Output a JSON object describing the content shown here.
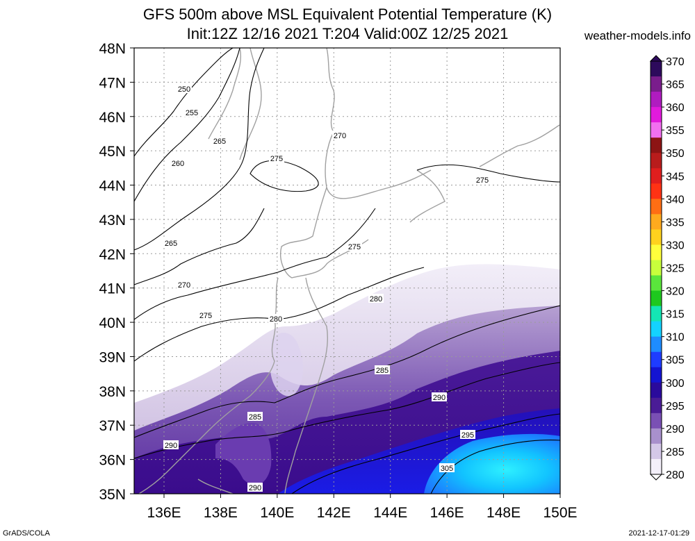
{
  "title_line1": "GFS 500m above MSL Equivalent Potential Temperature (K)",
  "title_line2": "Init:12Z 12/16 2021 T:204 Valid:00Z 12/25 2021",
  "site": "weather-models.info",
  "footer_left": "GrADS/COLA",
  "footer_right": "2021-12-17-01:29",
  "map": {
    "region": "Northern Japan / Hokkaido / Tohoku",
    "lat_labels": [
      "48N",
      "47N",
      "46N",
      "45N",
      "44N",
      "43N",
      "42N",
      "41N",
      "40N",
      "39N",
      "38N",
      "37N",
      "36N",
      "35N"
    ],
    "lon_labels": [
      "136E",
      "138E",
      "140E",
      "142E",
      "144E",
      "146E",
      "148E",
      "150E"
    ],
    "contour_labels": [
      {
        "text": "250"
      },
      {
        "text": "255"
      },
      {
        "text": "265"
      },
      {
        "text": "260"
      },
      {
        "text": "270"
      },
      {
        "text": "275"
      },
      {
        "text": "275"
      },
      {
        "text": "265"
      },
      {
        "text": "275"
      },
      {
        "text": "270"
      },
      {
        "text": "275"
      },
      {
        "text": "280"
      },
      {
        "text": "280"
      },
      {
        "text": "285"
      },
      {
        "text": "290"
      },
      {
        "text": "285"
      },
      {
        "text": "290"
      },
      {
        "text": "295"
      },
      {
        "text": "305"
      },
      {
        "text": "290"
      }
    ]
  },
  "colorbar": {
    "unit": "K",
    "labels": [
      "370",
      "365",
      "360",
      "355",
      "350",
      "345",
      "340",
      "335",
      "330",
      "325",
      "320",
      "315",
      "310",
      "305",
      "300",
      "295",
      "290",
      "285",
      "280"
    ],
    "colors": [
      "#2d0a5c",
      "#7a1d8c",
      "#b01cc0",
      "#e21adc",
      "#f270f0",
      "#8c1414",
      "#b81c1c",
      "#e01e1e",
      "#ff3214",
      "#ff6e14",
      "#ffaa1e",
      "#ffd21e",
      "#ffff3c",
      "#c8ff3c",
      "#5ae63c",
      "#1ec81e",
      "#14e6b4",
      "#14d2ff",
      "#1e8cff",
      "#1e3cff",
      "#1414d2",
      "#2a0a9c",
      "#4a1c96",
      "#7a50b4",
      "#a890cc",
      "#d4c8e8",
      "#f4f0fa"
    ]
  }
}
